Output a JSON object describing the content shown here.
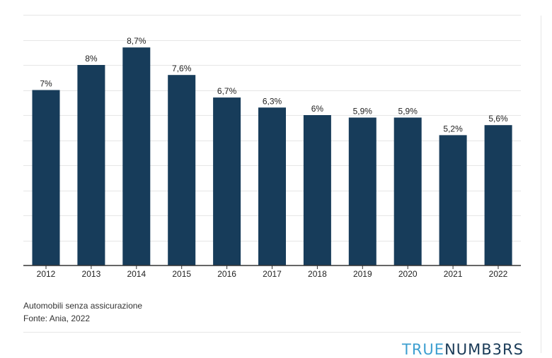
{
  "chart_data": {
    "type": "bar",
    "categories": [
      "2012",
      "2013",
      "2014",
      "2015",
      "2016",
      "2017",
      "2018",
      "2019",
      "2020",
      "2021",
      "2022"
    ],
    "values": [
      7,
      8,
      8.7,
      7.6,
      6.7,
      6.3,
      6,
      5.9,
      5.9,
      5.2,
      5.6
    ],
    "data_labels": [
      "7%",
      "8%",
      "8,7%",
      "7,6%",
      "6,7%",
      "6,3%",
      "6%",
      "5,9%",
      "5,9%",
      "5,2%",
      "5,6%"
    ],
    "ylim": [
      0,
      10
    ],
    "grid": true,
    "bar_color": "#173c5a"
  },
  "caption": {
    "line1": "Automobili senza assicurazione",
    "line2": "Fonte: Ania, 2022"
  },
  "logo": {
    "part1": "TRUE",
    "part2": "NUMB3RS"
  }
}
